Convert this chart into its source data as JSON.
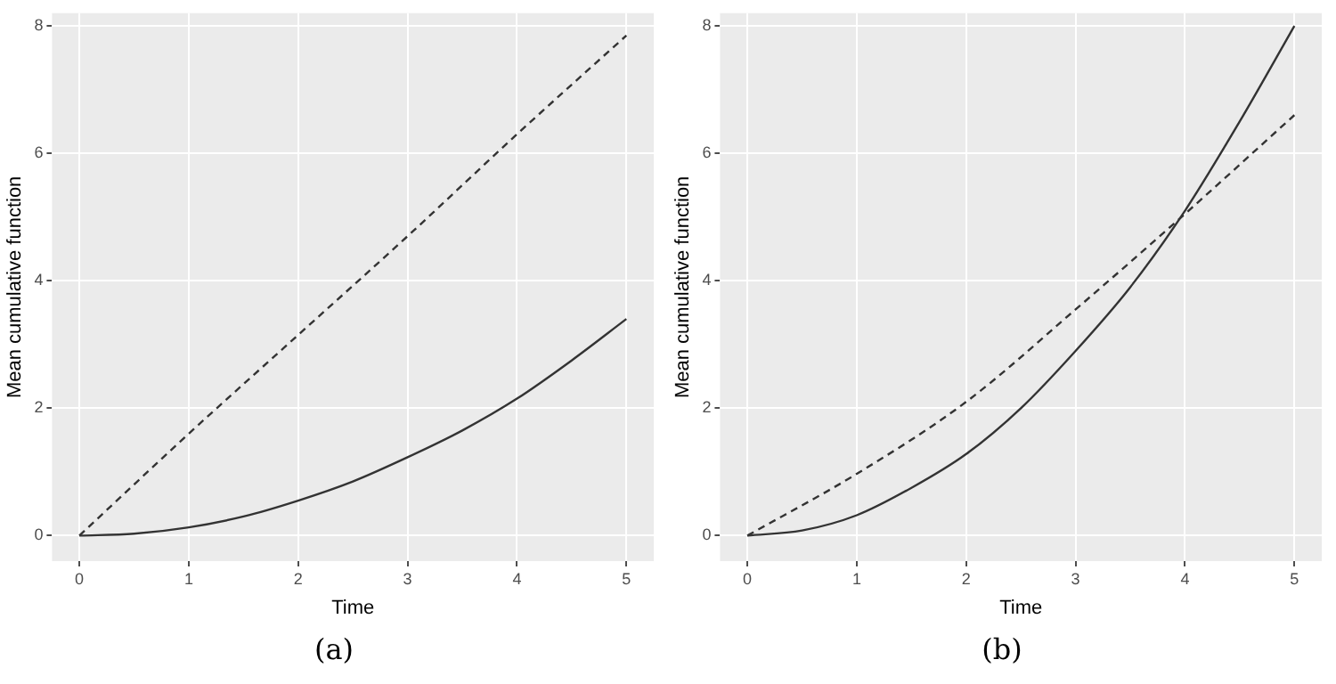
{
  "chart_data": [
    {
      "type": "line",
      "xlabel": "Time",
      "ylabel": "Mean cumulative function",
      "annotations": [
        "(a)"
      ],
      "xlim": [
        -0.25,
        5.25
      ],
      "xticks": [
        0,
        1,
        2,
        3,
        4,
        5
      ],
      "ylim": [
        -0.4,
        8.2
      ],
      "yticks": [
        0,
        2,
        4,
        6,
        8
      ],
      "grid": true,
      "series": [
        {
          "color": "#333333",
          "line_style": "solid",
          "x": [
            0,
            0.5,
            1,
            1.5,
            2,
            2.5,
            3,
            3.5,
            4,
            4.5,
            5
          ],
          "values": [
            0,
            0.03,
            0.13,
            0.3,
            0.55,
            0.85,
            1.23,
            1.65,
            2.15,
            2.75,
            3.4
          ]
        },
        {
          "color": "#333333",
          "line_style": "dashed",
          "x": [
            0,
            1,
            2,
            3,
            4,
            5
          ],
          "values": [
            0,
            1.6,
            3.15,
            4.7,
            6.3,
            7.85
          ]
        }
      ]
    },
    {
      "type": "line",
      "xlabel": "Time",
      "ylabel": "Mean cumulative function",
      "annotations": [
        "(b)"
      ],
      "xlim": [
        -0.25,
        5.25
      ],
      "xticks": [
        0,
        1,
        2,
        3,
        4,
        5
      ],
      "ylim": [
        -0.4,
        8.2
      ],
      "yticks": [
        0,
        2,
        4,
        6,
        8
      ],
      "grid": true,
      "series": [
        {
          "color": "#333333",
          "line_style": "solid",
          "x": [
            0,
            0.5,
            1,
            1.5,
            2,
            2.5,
            3,
            3.5,
            4,
            4.5,
            5
          ],
          "values": [
            0,
            0.08,
            0.32,
            0.75,
            1.28,
            2.0,
            2.9,
            3.9,
            5.1,
            6.5,
            8.0
          ]
        },
        {
          "color": "#333333",
          "line_style": "dashed",
          "x": [
            0,
            1,
            2,
            3,
            4,
            5
          ],
          "values": [
            0,
            0.97,
            2.1,
            3.55,
            5.05,
            6.6
          ]
        }
      ]
    }
  ]
}
